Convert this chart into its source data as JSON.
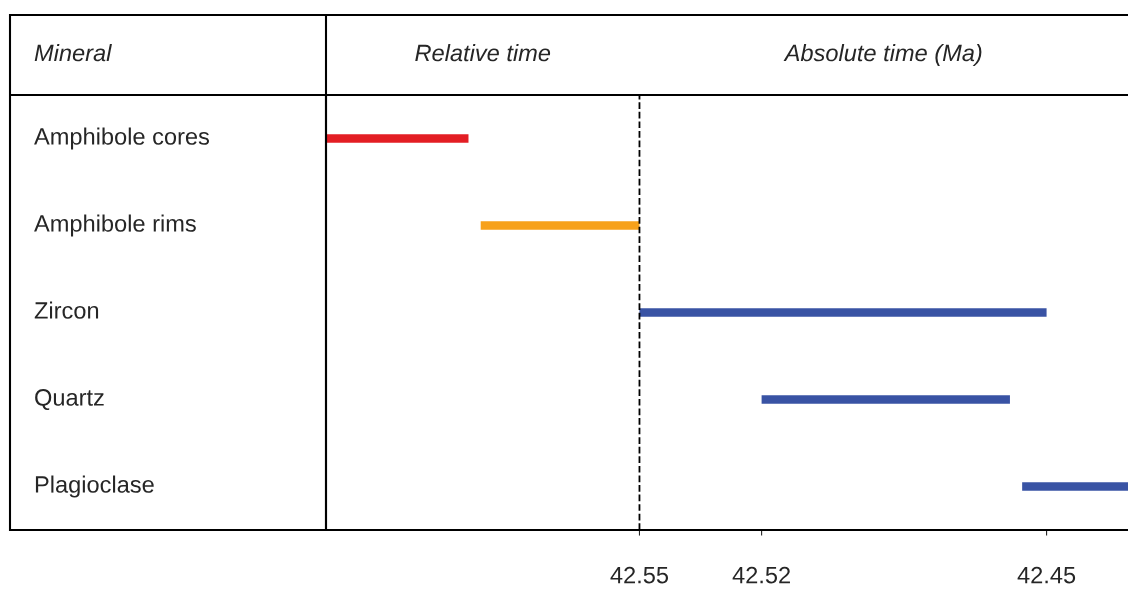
{
  "chart_data": {
    "type": "bar",
    "orientation": "horizontal",
    "ylabel": "Mineral",
    "categories": [
      "Amphibole cores",
      "Amphibole rims",
      "Zircon",
      "Quartz",
      "Plagioclase"
    ],
    "base": [
      42.627,
      42.589,
      42.55,
      42.52,
      42.456
    ],
    "values": [
      -0.035,
      -0.039,
      -0.1,
      -0.061,
      -0.026
    ],
    "colors": [
      "#e31e24",
      "#f7a11a",
      "#3953a4",
      "#3953a4",
      "#3953a4"
    ],
    "xlim": [
      42.627,
      42.43
    ],
    "xticks": [
      42.55,
      42.52,
      42.45
    ],
    "annotations": [
      "Relative time",
      "Absolute time (Ma)"
    ],
    "ref_lines": [
      {
        "axis": "x",
        "value": 42.55,
        "line_style": "dashed",
        "color": "#000000"
      }
    ],
    "grid": false,
    "legend": false
  }
}
